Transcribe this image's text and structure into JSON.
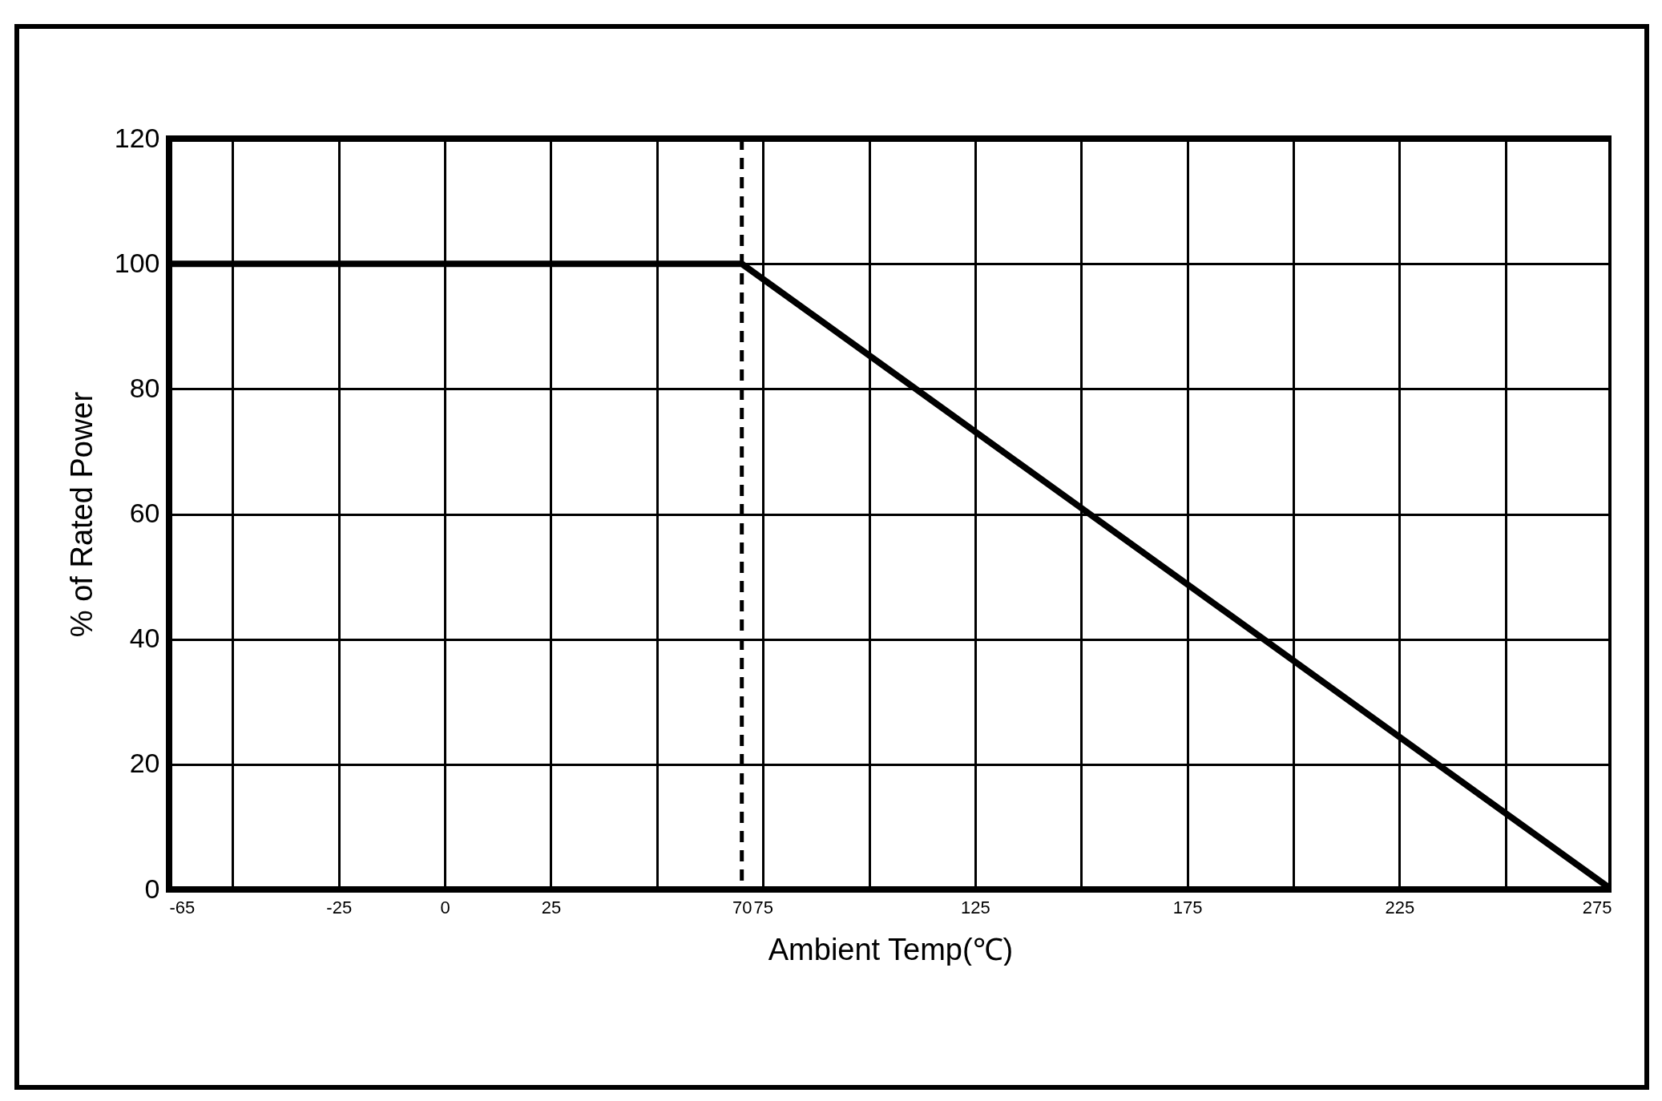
{
  "chart_data": {
    "type": "line",
    "xlabel": "Ambient Temp(℃)",
    "ylabel": "% of Rated Power",
    "x": [
      -65,
      70,
      275
    ],
    "series": [
      {
        "color": "#000000",
        "values": [
          100,
          100,
          0
        ]
      }
    ],
    "xlim": [
      -65,
      275
    ],
    "xticks": [
      -65,
      {
        "value": -50,
        "label": null
      },
      -25,
      0,
      25,
      {
        "value": 50,
        "label": null
      },
      70,
      75,
      {
        "value": 100,
        "label": null
      },
      125,
      {
        "value": 150,
        "label": null
      },
      175,
      {
        "value": 200,
        "label": null
      },
      225,
      {
        "value": 250,
        "label": null
      },
      275
    ],
    "ylim": [
      0,
      120
    ],
    "yticks": [
      0,
      20,
      40,
      60,
      80,
      100,
      120
    ],
    "ref_lines": [
      {
        "axis": "x",
        "value": 70,
        "color": "#000000",
        "line_style": "dashed"
      }
    ],
    "grid": true,
    "marker": "none",
    "line_style": "solid"
  }
}
